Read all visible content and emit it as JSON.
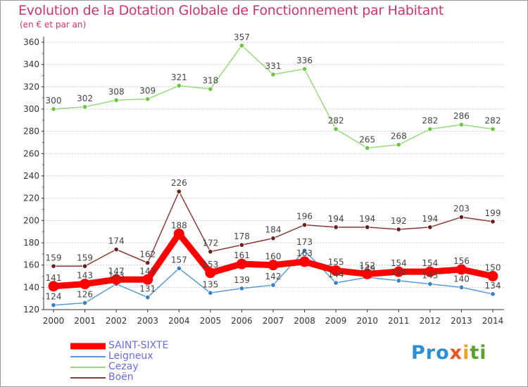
{
  "title": "Evolution de la Dotation Globale de Fonctionnement par Habitant",
  "subtitle": "(en € et par an)",
  "logo": {
    "part1": "Pro",
    "part2": "x",
    "part3": "i",
    "part4": "ti"
  },
  "colors": {
    "title": "#c8366e",
    "axis": "#333333",
    "grid": "#cccccc",
    "legend_text": "#6b6be0"
  },
  "chart_data": {
    "type": "line",
    "title": "Evolution de la Dotation Globale de Fonctionnement par Habitant",
    "subtitle": "(en € et par an)",
    "xlabel": "",
    "ylabel": "",
    "ylim": [
      120,
      360
    ],
    "yticks": [
      120,
      140,
      160,
      180,
      200,
      220,
      240,
      260,
      280,
      300,
      320,
      340,
      360
    ],
    "grid": "horizontal",
    "legend_placement": "bottom-left",
    "categories": [
      "2000",
      "2001",
      "2002",
      "2003",
      "2004",
      "2005",
      "2006",
      "2007",
      "2008",
      "2009",
      "2010",
      "2011",
      "2012",
      "2013",
      "2014"
    ],
    "series": [
      {
        "name": "SAINT-SIXTE",
        "color": "#ff0000",
        "marker": "#ff0000",
        "values": [
          141,
          143,
          147,
          147,
          188,
          153,
          161,
          160,
          163,
          155,
          152,
          154,
          154,
          156,
          150
        ]
      },
      {
        "name": "Leigneux",
        "color": "#5b9bd5",
        "marker": "#3a7fc1",
        "values": [
          124,
          126,
          143,
          131,
          157,
          135,
          139,
          142,
          173,
          144,
          149,
          146,
          143,
          140,
          134
        ]
      },
      {
        "name": "Cezay",
        "color": "#9ad97a",
        "marker": "#6cc644",
        "values": [
          300,
          302,
          308,
          309,
          321,
          318,
          357,
          331,
          336,
          282,
          265,
          268,
          282,
          286,
          282
        ]
      },
      {
        "name": "Boën",
        "color": "#8b3a3a",
        "marker": "#6b1e1e",
        "values": [
          159,
          159,
          174,
          162,
          226,
          172,
          178,
          184,
          196,
          194,
          194,
          192,
          194,
          203,
          199
        ]
      }
    ]
  }
}
